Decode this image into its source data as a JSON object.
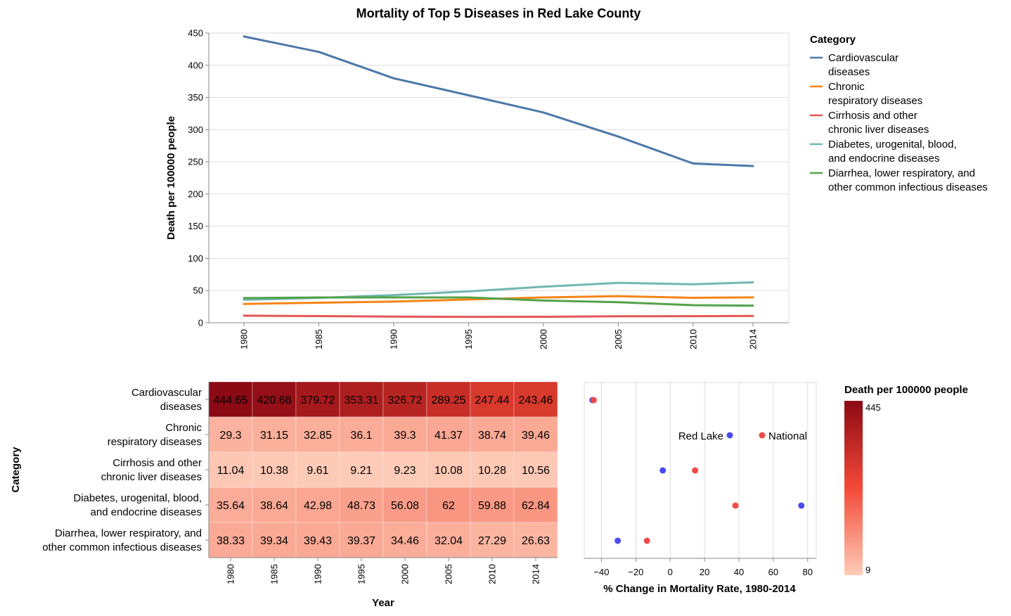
{
  "page": {
    "title": "Mortality of Top 5 Diseases in Red Lake County"
  },
  "colors": {
    "cardiovascular": "#4c78a8",
    "chronic_respiratory": "#f58518",
    "cirrhosis": "#e45756",
    "diabetes": "#72b7b2",
    "diarrhea": "#54a24b",
    "red_lake_dot": "#4a4aee",
    "national_dot": "#ee4a4a",
    "heat_low": "#fdccb8",
    "heat_mid": "#f34a36",
    "heat_high": "#8b0a14"
  },
  "chart_data": [
    {
      "type": "line",
      "title": "Mortality of Top 5 Diseases in Red Lake County",
      "x": [
        "1980",
        "1985",
        "1990",
        "1995",
        "2000",
        "2005",
        "2010",
        "2014"
      ],
      "ylabel": "Death per 100000 people",
      "ylim": [
        0,
        450
      ],
      "yticks": [
        "0",
        "50",
        "100",
        "150",
        "200",
        "250",
        "300",
        "350",
        "400",
        "450"
      ],
      "grid": true,
      "legend_title": "Category",
      "legend_position": "right",
      "series": [
        {
          "name": "Cardiovascular diseases",
          "name_lines": [
            "Cardiovascular",
            "diseases"
          ],
          "color_key": "cardiovascular",
          "values": [
            444.65,
            420.68,
            379.72,
            353.31,
            326.72,
            289.25,
            247.44,
            243.46
          ]
        },
        {
          "name": "Chronic respiratory diseases",
          "name_lines": [
            "Chronic",
            "respiratory diseases"
          ],
          "color_key": "chronic_respiratory",
          "values": [
            29.3,
            31.15,
            32.85,
            36.1,
            39.3,
            41.37,
            38.74,
            39.46
          ]
        },
        {
          "name": "Cirrhosis and other chronic liver diseases",
          "name_lines": [
            "Cirrhosis and other",
            "chronic liver diseases"
          ],
          "color_key": "cirrhosis",
          "values": [
            11.04,
            10.38,
            9.61,
            9.21,
            9.23,
            10.08,
            10.28,
            10.56
          ]
        },
        {
          "name": "Diabetes, urogenital, blood, and endocrine diseases",
          "name_lines": [
            "Diabetes, urogenital, blood,",
            "and endocrine diseases"
          ],
          "color_key": "diabetes",
          "values": [
            35.64,
            38.64,
            42.98,
            48.73,
            56.08,
            62,
            59.88,
            62.84
          ]
        },
        {
          "name": "Diarrhea, lower respiratory, and other common infectious diseases",
          "name_lines": [
            "Diarrhea, lower respiratory, and",
            "other common infectious diseases"
          ],
          "color_key": "diarrhea",
          "values": [
            38.33,
            39.34,
            39.43,
            39.37,
            34.46,
            32.04,
            27.29,
            26.63
          ]
        }
      ]
    },
    {
      "type": "heatmap",
      "xlabel": "Year",
      "ylabel": "Category",
      "x": [
        "1980",
        "1985",
        "1990",
        "1995",
        "2000",
        "2005",
        "2010",
        "2014"
      ],
      "rows": [
        {
          "lines": [
            "Cardiovascular",
            "diseases"
          ],
          "values": [
            "444.65",
            "420.68",
            "379.72",
            "353.31",
            "326.72",
            "289.25",
            "247.44",
            "243.46"
          ]
        },
        {
          "lines": [
            "Chronic",
            "respiratory diseases"
          ],
          "values": [
            "29.3",
            "31.15",
            "32.85",
            "36.1",
            "39.3",
            "41.37",
            "38.74",
            "39.46"
          ]
        },
        {
          "lines": [
            "Cirrhosis and other",
            "chronic liver diseases"
          ],
          "values": [
            "11.04",
            "10.38",
            "9.61",
            "9.21",
            "9.23",
            "10.08",
            "10.28",
            "10.56"
          ]
        },
        {
          "lines": [
            "Diabetes, urogenital, blood,",
            "and endocrine diseases"
          ],
          "values": [
            "35.64",
            "38.64",
            "42.98",
            "48.73",
            "56.08",
            "62",
            "59.88",
            "62.84"
          ]
        },
        {
          "lines": [
            "Diarrhea, lower respiratory, and",
            "other common infectious diseases"
          ],
          "values": [
            "38.33",
            "39.34",
            "39.43",
            "39.37",
            "34.46",
            "32.04",
            "27.29",
            "26.63"
          ]
        }
      ],
      "color_scale": {
        "title": "Death per 100000 people",
        "min": 9,
        "max": 445,
        "min_label": "9",
        "max_label": "445"
      }
    },
    {
      "type": "scatter",
      "xlabel": "% Change in Mortality Rate, 1980-2014",
      "xlim": [
        -50,
        85
      ],
      "xticks": [
        "−40",
        "−20",
        "0",
        "20",
        "40",
        "60",
        "80"
      ],
      "xtick_values": [
        -40,
        -20,
        0,
        20,
        40,
        60,
        80
      ],
      "legend": [
        {
          "label": "Red Lake",
          "color_key": "red_lake_dot"
        },
        {
          "label": "National",
          "color_key": "national_dot"
        }
      ],
      "series": [
        {
          "name": "Red Lake",
          "color_key": "red_lake_dot",
          "values": [
            -45.2,
            34.7,
            -4.3,
            76.3,
            -30.5
          ]
        },
        {
          "name": "National",
          "color_key": "national_dot",
          "values": [
            -44.5,
            53.5,
            14.5,
            38.0,
            -13.5
          ]
        }
      ]
    }
  ]
}
